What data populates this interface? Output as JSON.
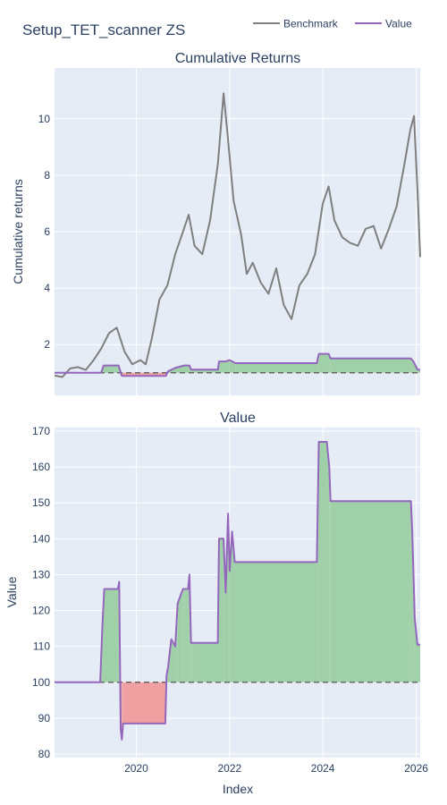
{
  "figure": {
    "title": "Setup_TET_scanner ZS",
    "legend": [
      {
        "name": "Benchmark",
        "color": "#7f7f7f"
      },
      {
        "name": "Value",
        "color": "#9467bd"
      }
    ],
    "xlabel": "Index",
    "colors": {
      "plot_bg": "#e5ecf6",
      "grid": "#ffffff",
      "benchmark": "#7f7f7f",
      "value": "#9467bd",
      "gain_fill": "#9fd0a8",
      "loss_fill": "#f0a0a0",
      "baseline": "#666666"
    }
  },
  "chart_data": [
    {
      "type": "line",
      "title": "Cumulative Returns",
      "ylabel": "Cumulative returns",
      "xlim": [
        "2018-04-01",
        "2026-02-01"
      ],
      "ylim": [
        0.2,
        11.8
      ],
      "xticks": [
        {
          "x": "2020-01-01",
          "label": "2020"
        },
        {
          "x": "2022-01-01",
          "label": "2022"
        },
        {
          "x": "2024-01-01",
          "label": "2024"
        },
        {
          "x": "2026-01-01",
          "label": "2026"
        }
      ],
      "yticks": [
        {
          "y": 2,
          "label": "2"
        },
        {
          "y": 4,
          "label": "4"
        },
        {
          "y": 6,
          "label": "6"
        },
        {
          "y": 8,
          "label": "8"
        },
        {
          "y": 10,
          "label": "10"
        }
      ],
      "baseline": 1,
      "series": [
        {
          "name": "Benchmark",
          "x": [
            "2018-04-01",
            "2018-06-01",
            "2018-08-01",
            "2018-10-01",
            "2018-12-01",
            "2019-02-01",
            "2019-04-01",
            "2019-06-01",
            "2019-08-01",
            "2019-10-01",
            "2019-12-01",
            "2020-02-01",
            "2020-03-15",
            "2020-05-01",
            "2020-07-01",
            "2020-09-01",
            "2020-11-01",
            "2021-01-01",
            "2021-02-15",
            "2021-04-01",
            "2021-06-01",
            "2021-08-01",
            "2021-10-01",
            "2021-11-15",
            "2021-12-15",
            "2022-02-01",
            "2022-04-01",
            "2022-05-15",
            "2022-07-01",
            "2022-09-01",
            "2022-11-01",
            "2023-01-01",
            "2023-03-01",
            "2023-05-01",
            "2023-07-01",
            "2023-09-01",
            "2023-11-01",
            "2024-01-01",
            "2024-02-15",
            "2024-04-01",
            "2024-06-01",
            "2024-08-01",
            "2024-10-01",
            "2024-12-01",
            "2025-02-01",
            "2025-04-01",
            "2025-06-01",
            "2025-08-01",
            "2025-10-01",
            "2025-11-15",
            "2025-12-15",
            "2026-01-15",
            "2026-02-01"
          ],
          "y": [
            0.9,
            0.85,
            1.15,
            1.2,
            1.1,
            1.45,
            1.85,
            2.4,
            2.6,
            1.75,
            1.3,
            1.45,
            1.3,
            2.2,
            3.6,
            4.1,
            5.2,
            6.0,
            6.6,
            5.5,
            5.2,
            6.4,
            8.4,
            10.9,
            9.5,
            7.1,
            5.9,
            4.5,
            4.9,
            4.2,
            3.8,
            4.7,
            3.4,
            2.9,
            4.1,
            4.5,
            5.2,
            7.0,
            7.6,
            6.4,
            5.8,
            5.6,
            5.5,
            6.1,
            6.2,
            5.4,
            6.1,
            6.9,
            8.4,
            9.6,
            10.1,
            7.0,
            5.1
          ]
        },
        {
          "name": "Value",
          "x": [
            "2018-04-01",
            "2019-04-01",
            "2019-04-20",
            "2019-08-15",
            "2019-09-10",
            "2020-08-20",
            "2020-09-05",
            "2020-11-01",
            "2021-01-10",
            "2021-02-20",
            "2021-03-05",
            "2021-10-01",
            "2021-10-10",
            "2021-12-01",
            "2022-01-01",
            "2022-02-15",
            "2023-11-15",
            "2023-12-01",
            "2024-02-15",
            "2024-03-01",
            "2025-11-20",
            "2025-12-10",
            "2026-01-10",
            "2026-02-01"
          ],
          "y": [
            1.0,
            1.0,
            1.26,
            1.26,
            0.89,
            0.89,
            1.05,
            1.17,
            1.26,
            1.26,
            1.11,
            1.11,
            1.4,
            1.4,
            1.45,
            1.34,
            1.34,
            1.67,
            1.67,
            1.51,
            1.51,
            1.4,
            1.12,
            1.1
          ]
        }
      ]
    },
    {
      "type": "line",
      "title": "Value",
      "ylabel": "Value",
      "xlabel": "Index",
      "xlim": [
        "2018-04-01",
        "2026-02-01"
      ],
      "ylim": [
        79,
        171
      ],
      "xticks": [
        {
          "x": "2020-01-01",
          "label": "2020"
        },
        {
          "x": "2022-01-01",
          "label": "2022"
        },
        {
          "x": "2024-01-01",
          "label": "2024"
        },
        {
          "x": "2026-01-01",
          "label": "2026"
        }
      ],
      "yticks": [
        {
          "y": 80,
          "label": "80"
        },
        {
          "y": 90,
          "label": "90"
        },
        {
          "y": 100,
          "label": "100"
        },
        {
          "y": 110,
          "label": "110"
        },
        {
          "y": 120,
          "label": "120"
        },
        {
          "y": 130,
          "label": "130"
        },
        {
          "y": 140,
          "label": "140"
        },
        {
          "y": 150,
          "label": "150"
        },
        {
          "y": 160,
          "label": "160"
        },
        {
          "y": 170,
          "label": "170"
        }
      ],
      "baseline": 100,
      "series": [
        {
          "name": "Value",
          "x": [
            "2018-04-01",
            "2019-03-25",
            "2019-04-10",
            "2019-04-25",
            "2019-08-10",
            "2019-08-20",
            "2019-09-01",
            "2019-09-10",
            "2019-09-20",
            "2020-08-15",
            "2020-08-25",
            "2020-09-05",
            "2020-10-01",
            "2020-11-01",
            "2020-11-20",
            "2021-01-01",
            "2021-01-15",
            "2021-02-10",
            "2021-02-20",
            "2021-03-05",
            "2021-03-20",
            "2021-04-10",
            "2021-09-30",
            "2021-10-10",
            "2021-11-15",
            "2021-12-01",
            "2021-12-20",
            "2022-01-01",
            "2022-01-20",
            "2022-02-10",
            "2023-11-15",
            "2023-11-30",
            "2024-02-01",
            "2024-02-20",
            "2024-03-01",
            "2025-11-10",
            "2025-11-20",
            "2025-12-01",
            "2025-12-20",
            "2026-01-10",
            "2026-02-01"
          ],
          "y": [
            100,
            100,
            115,
            126,
            126,
            128,
            87,
            84,
            88.5,
            88.5,
            102,
            104,
            112,
            110,
            122,
            126,
            126,
            126,
            130,
            111,
            111,
            111,
            111,
            140,
            140,
            125,
            147,
            131,
            142,
            133.5,
            133.5,
            167,
            167,
            160,
            150.5,
            150.5,
            150.5,
            142,
            118,
            110.5,
            110.5
          ]
        }
      ]
    }
  ]
}
